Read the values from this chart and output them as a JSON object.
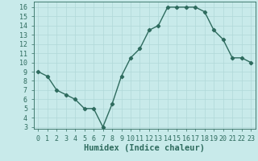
{
  "x": [
    0,
    1,
    2,
    3,
    4,
    5,
    6,
    7,
    8,
    9,
    10,
    11,
    12,
    13,
    14,
    15,
    16,
    17,
    18,
    19,
    20,
    21,
    22,
    23
  ],
  "y": [
    9,
    8.5,
    7,
    6.5,
    6,
    5,
    5,
    3,
    5.5,
    8.5,
    10.5,
    11.5,
    13.5,
    14,
    16,
    16,
    16,
    16,
    15.5,
    13.5,
    12.5,
    10.5,
    10.5,
    10
  ],
  "line_color": "#2e6b5e",
  "marker": "D",
  "markersize": 2.2,
  "linewidth": 1.0,
  "bg_color": "#c8eaea",
  "grid_color": "#b0d8d8",
  "xlabel": "Humidex (Indice chaleur)",
  "xlim": [
    -0.5,
    23.5
  ],
  "ylim": [
    2.8,
    16.6
  ],
  "yticks": [
    3,
    4,
    5,
    6,
    7,
    8,
    9,
    10,
    11,
    12,
    13,
    14,
    15,
    16
  ],
  "xticks": [
    0,
    1,
    2,
    3,
    4,
    5,
    6,
    7,
    8,
    9,
    10,
    11,
    12,
    13,
    14,
    15,
    16,
    17,
    18,
    19,
    20,
    21,
    22,
    23
  ],
  "tick_color": "#2e6b5e",
  "label_color": "#2e6b5e",
  "xlabel_fontsize": 7.5,
  "tick_fontsize": 6.0
}
